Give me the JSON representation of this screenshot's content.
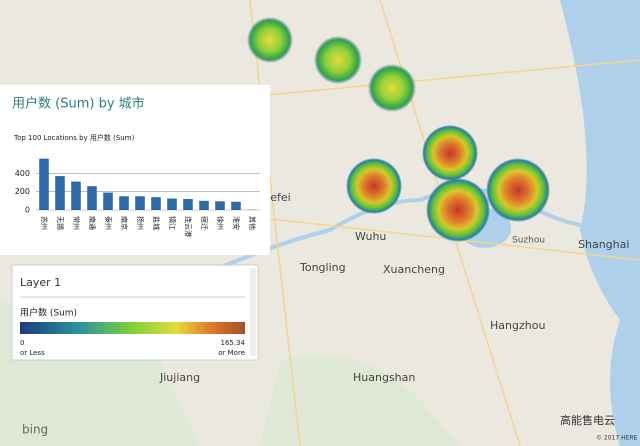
{
  "map": {
    "places": [
      "Hefei",
      "Wuhu",
      "Tongling",
      "Xuancheng",
      "Huangshan",
      "Hangzhou",
      "Shanghai",
      "Suzhou",
      "Jiujiang"
    ],
    "attribution": "bing",
    "copyright": "© 2017 HERE",
    "watermark": "高能售电云"
  },
  "chart_data": {
    "type": "bar",
    "title": "用户数 (Sum) by 城市",
    "subtitle": "Top 100 Locations  by 用户数 (Sum)",
    "categories": [
      "苏州",
      "无锡",
      "常州",
      "南通",
      "泰州",
      "南京",
      "扬州",
      "盐城",
      "镇江",
      "连云港",
      "宿迁",
      "徐州",
      "淮安",
      "其他"
    ],
    "values": [
      560,
      370,
      310,
      260,
      190,
      150,
      150,
      140,
      125,
      120,
      100,
      95,
      90,
      3
    ],
    "color": "#2e6aa8",
    "ylim": [
      0,
      600
    ],
    "yticks": [
      0,
      200,
      400
    ],
    "grid": true
  },
  "legend": {
    "layer": "Layer 1",
    "measure": "用户数 (Sum)",
    "min": "0",
    "max": "165.34",
    "min_note": "or Less",
    "max_note": "or More"
  }
}
